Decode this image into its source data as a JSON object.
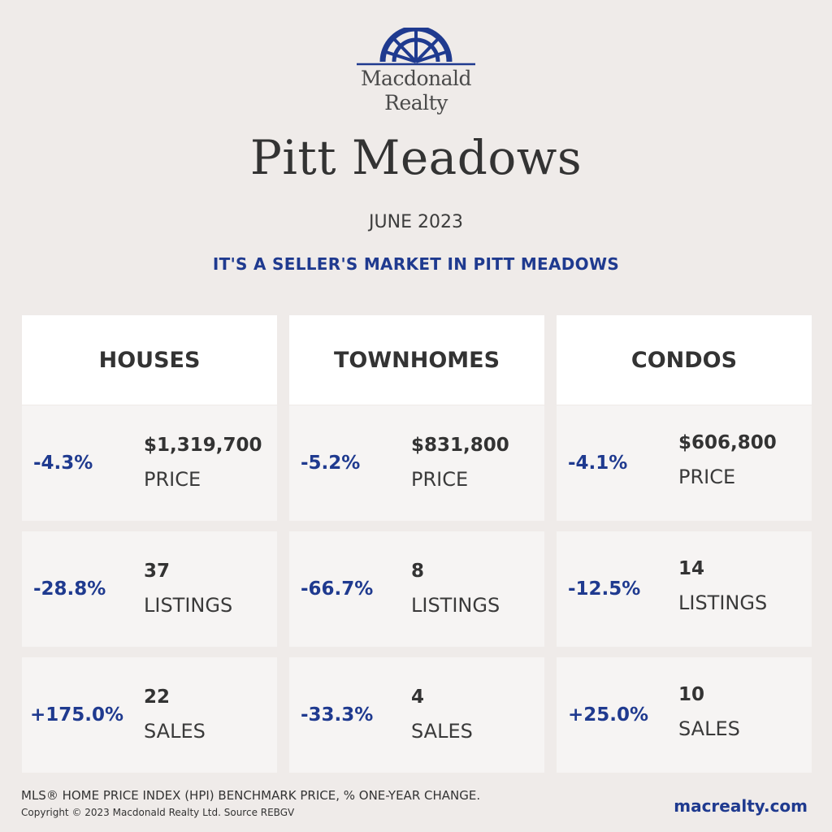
{
  "brand": {
    "logo_line1": "Macdonald",
    "logo_line2": "Realty",
    "logo_color": "#1f3a8f"
  },
  "title": "Pitt Meadows",
  "date": "JUNE 2023",
  "headline": "IT'S A SELLER'S MARKET IN PITT MEADOWS",
  "columns": [
    {
      "header": "HOUSES",
      "price": {
        "change": "-4.3%",
        "value": "$1,319,700",
        "label": "PRICE"
      },
      "listings": {
        "change": "-28.8%",
        "value": "37",
        "label": "LISTINGS"
      },
      "sales": {
        "change": "+175.0%",
        "value": "22",
        "label": "SALES"
      }
    },
    {
      "header": "TOWNHOMES",
      "price": {
        "change": "-5.2%",
        "value": "$831,800",
        "label": "PRICE"
      },
      "listings": {
        "change": "-66.7%",
        "value": "8",
        "label": "LISTINGS"
      },
      "sales": {
        "change": "-33.3%",
        "value": "4",
        "label": "SALES"
      }
    },
    {
      "header": "CONDOS",
      "price": {
        "change": "-4.1%",
        "value": "$606,800",
        "label": "PRICE"
      },
      "listings": {
        "change": "-12.5%",
        "value": "14",
        "label": "LISTINGS"
      },
      "sales": {
        "change": "+25.0%",
        "value": "10",
        "label": "SALES"
      }
    }
  ],
  "footer": {
    "note": "MLS® HOME PRICE INDEX (HPI) BENCHMARK PRICE, % ONE-YEAR CHANGE.",
    "copyright": "Copyright © 2023 Macdonald Realty Ltd. Source REBGV",
    "website": "macrealty.com"
  },
  "colors": {
    "accent": "#1f3a8f",
    "background": "#efebe9",
    "card": "#f6f4f3",
    "header": "#ffffff"
  }
}
